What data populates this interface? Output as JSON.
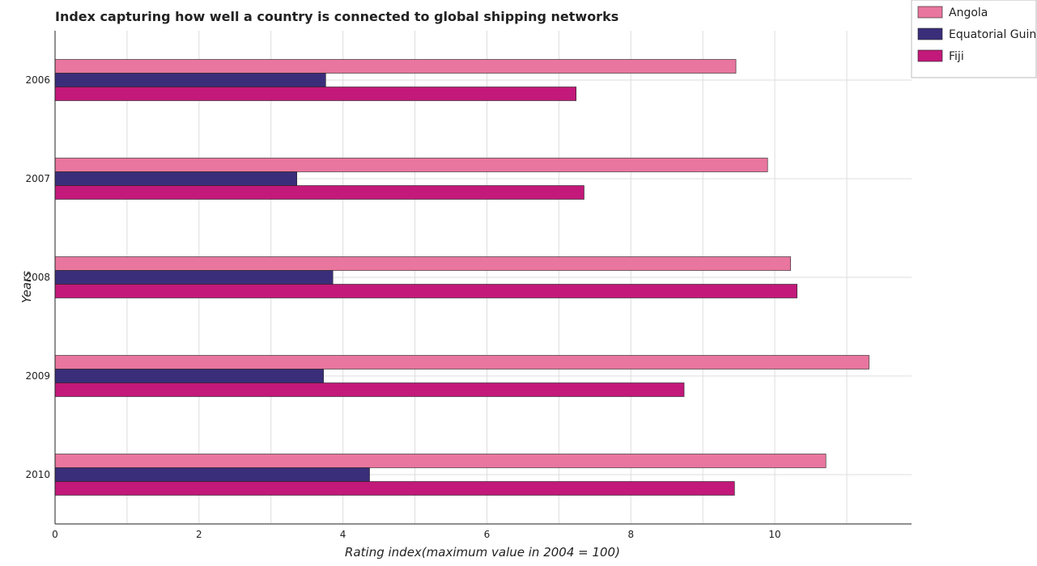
{
  "chart_data": {
    "type": "bar",
    "orientation": "horizontal",
    "title": "Index capturing how well a country is connected to global shipping networks",
    "xlabel": "Rating index(maximum value in 2004 = 100)",
    "ylabel": "Years",
    "categories": [
      "2006",
      "2007",
      "2008",
      "2009",
      "2010"
    ],
    "xlim": [
      0,
      11.9
    ],
    "xticks": [
      "0",
      "2",
      "4",
      "6",
      "8",
      "10"
    ],
    "grid": true,
    "legend_position": "top-right",
    "series": [
      {
        "name": "Angola",
        "color": "#e8769e",
        "values": [
          9.46,
          9.9,
          10.22,
          11.31,
          10.71
        ]
      },
      {
        "name": "Equatorial Guinea",
        "color": "#3a2e7a",
        "values": [
          3.76,
          3.36,
          3.86,
          3.73,
          4.37
        ]
      },
      {
        "name": "Fiji",
        "color": "#c2197a",
        "values": [
          7.24,
          7.35,
          10.31,
          8.74,
          9.44
        ]
      }
    ]
  }
}
